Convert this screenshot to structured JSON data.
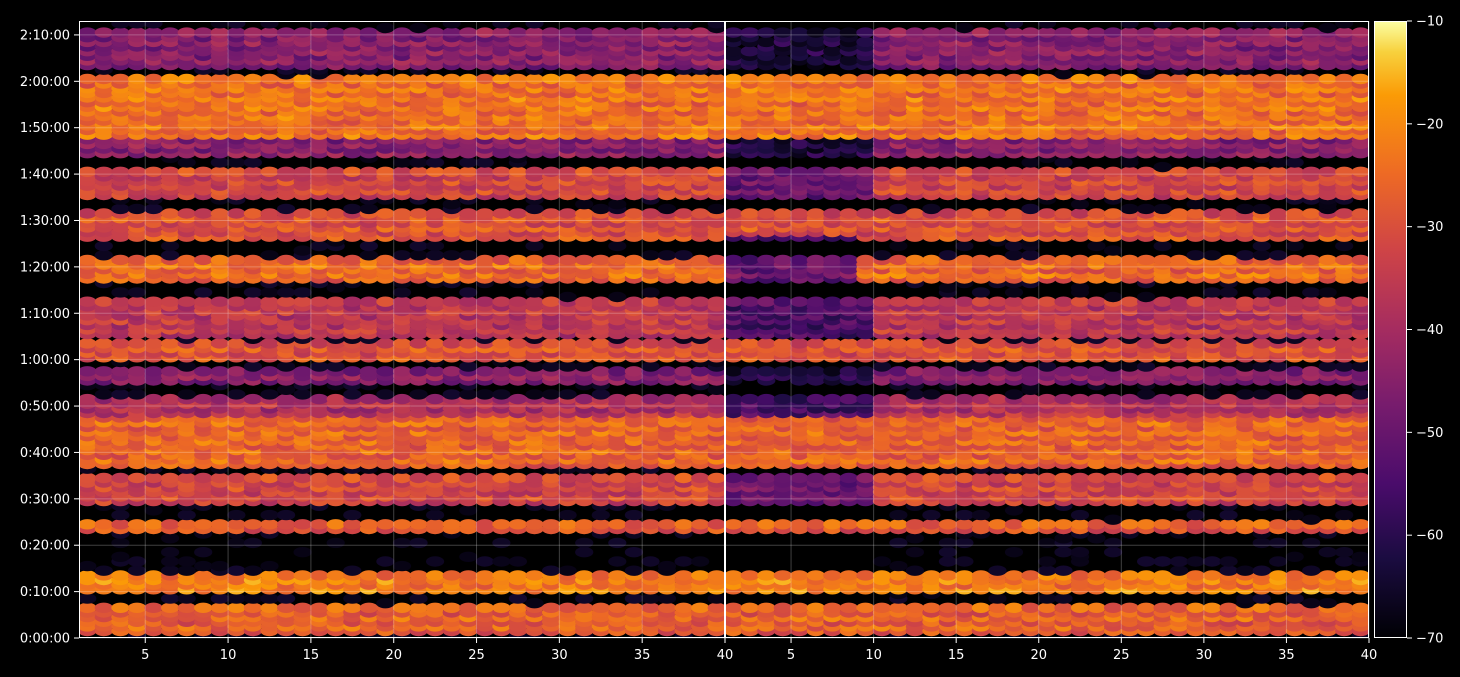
{
  "chart_data": {
    "type": "heatmap",
    "title": "",
    "xlabel": "",
    "ylabel": "",
    "grid": true,
    "panels": [
      {
        "name": "",
        "xlim": [
          1,
          40
        ],
        "xticks": [
          "5",
          "10",
          "15",
          "20",
          "25",
          "30",
          "35",
          "40"
        ],
        "xtick_values": [
          5,
          10,
          15,
          20,
          25,
          30,
          35,
          40
        ]
      },
      {
        "name": "",
        "xlim": [
          1,
          40
        ],
        "xticks": [
          "5",
          "10",
          "15",
          "20",
          "25",
          "30",
          "35",
          "40"
        ],
        "xtick_values": [
          5,
          10,
          15,
          20,
          25,
          30,
          35,
          40
        ]
      }
    ],
    "ylim_seconds": [
      0,
      7980
    ],
    "yticks": [
      "0:00:00",
      "0:10:00",
      "0:20:00",
      "0:30:00",
      "0:40:00",
      "0:50:00",
      "1:00:00",
      "1:10:00",
      "1:20:00",
      "1:30:00",
      "1:40:00",
      "1:50:00",
      "2:00:00",
      "2:10:00"
    ],
    "ytick_values_seconds": [
      0,
      600,
      1200,
      1800,
      2400,
      3000,
      3600,
      4200,
      4800,
      5400,
      6000,
      6600,
      7200,
      7800
    ],
    "colormap": "inferno",
    "color_range": [
      -70,
      -10
    ],
    "colorbar_ticks": [
      "−70",
      "−60",
      "−50",
      "−40",
      "−30",
      "−20",
      "−10"
    ],
    "colorbar_values": [
      -70,
      -60,
      -50,
      -40,
      -30,
      -20,
      -10
    ],
    "row_levels_approx": {
      "description_rows": "mean level per time band, left panel",
      "bands": [
        {
          "start_s": 60,
          "end_s": 420,
          "level": -27
        },
        {
          "start_s": 600,
          "end_s": 840,
          "level": -22
        },
        {
          "start_s": 1380,
          "end_s": 1500,
          "level": -28
        },
        {
          "start_s": 1740,
          "end_s": 2100,
          "level": -32
        },
        {
          "start_s": 2220,
          "end_s": 2880,
          "level": -26
        },
        {
          "start_s": 2880,
          "end_s": 3120,
          "level": -38
        },
        {
          "start_s": 3300,
          "end_s": 3480,
          "level": -45
        },
        {
          "start_s": 3600,
          "end_s": 3840,
          "level": -30
        },
        {
          "start_s": 3900,
          "end_s": 4380,
          "level": -36
        },
        {
          "start_s": 4620,
          "end_s": 4920,
          "level": -25
        },
        {
          "start_s": 5160,
          "end_s": 5520,
          "level": -30
        },
        {
          "start_s": 5700,
          "end_s": 6060,
          "level": -32
        },
        {
          "start_s": 6240,
          "end_s": 6480,
          "level": -45
        },
        {
          "start_s": 6480,
          "end_s": 7260,
          "level": -24
        },
        {
          "start_s": 7380,
          "end_s": 7860,
          "level": -45
        }
      ]
    }
  }
}
